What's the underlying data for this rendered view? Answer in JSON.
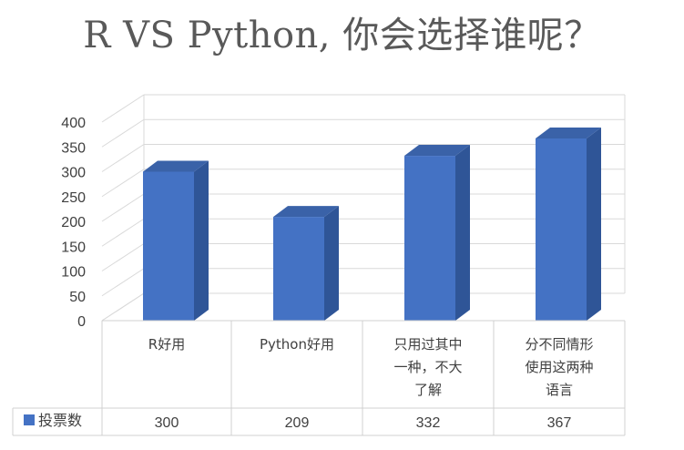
{
  "chart_data": {
    "type": "bar",
    "title": "R VS Python, 你会选择谁呢？",
    "categories": [
      [
        "R好用"
      ],
      [
        "Python好用"
      ],
      [
        "只用过其中",
        "一种，不大",
        "了解"
      ],
      [
        "分不同情形",
        "使用这两种",
        "语言"
      ]
    ],
    "series": [
      {
        "name": "投票数",
        "values": [
          300,
          209,
          332,
          367
        ],
        "color": "#4472C4"
      }
    ],
    "ylim": [
      0,
      400
    ],
    "yticks": [
      0,
      50,
      100,
      150,
      200,
      250,
      300,
      350,
      400
    ],
    "value_labels": [
      "300",
      "209",
      "332",
      "367"
    ],
    "grid": true,
    "style": "3d-column-with-data-table"
  }
}
